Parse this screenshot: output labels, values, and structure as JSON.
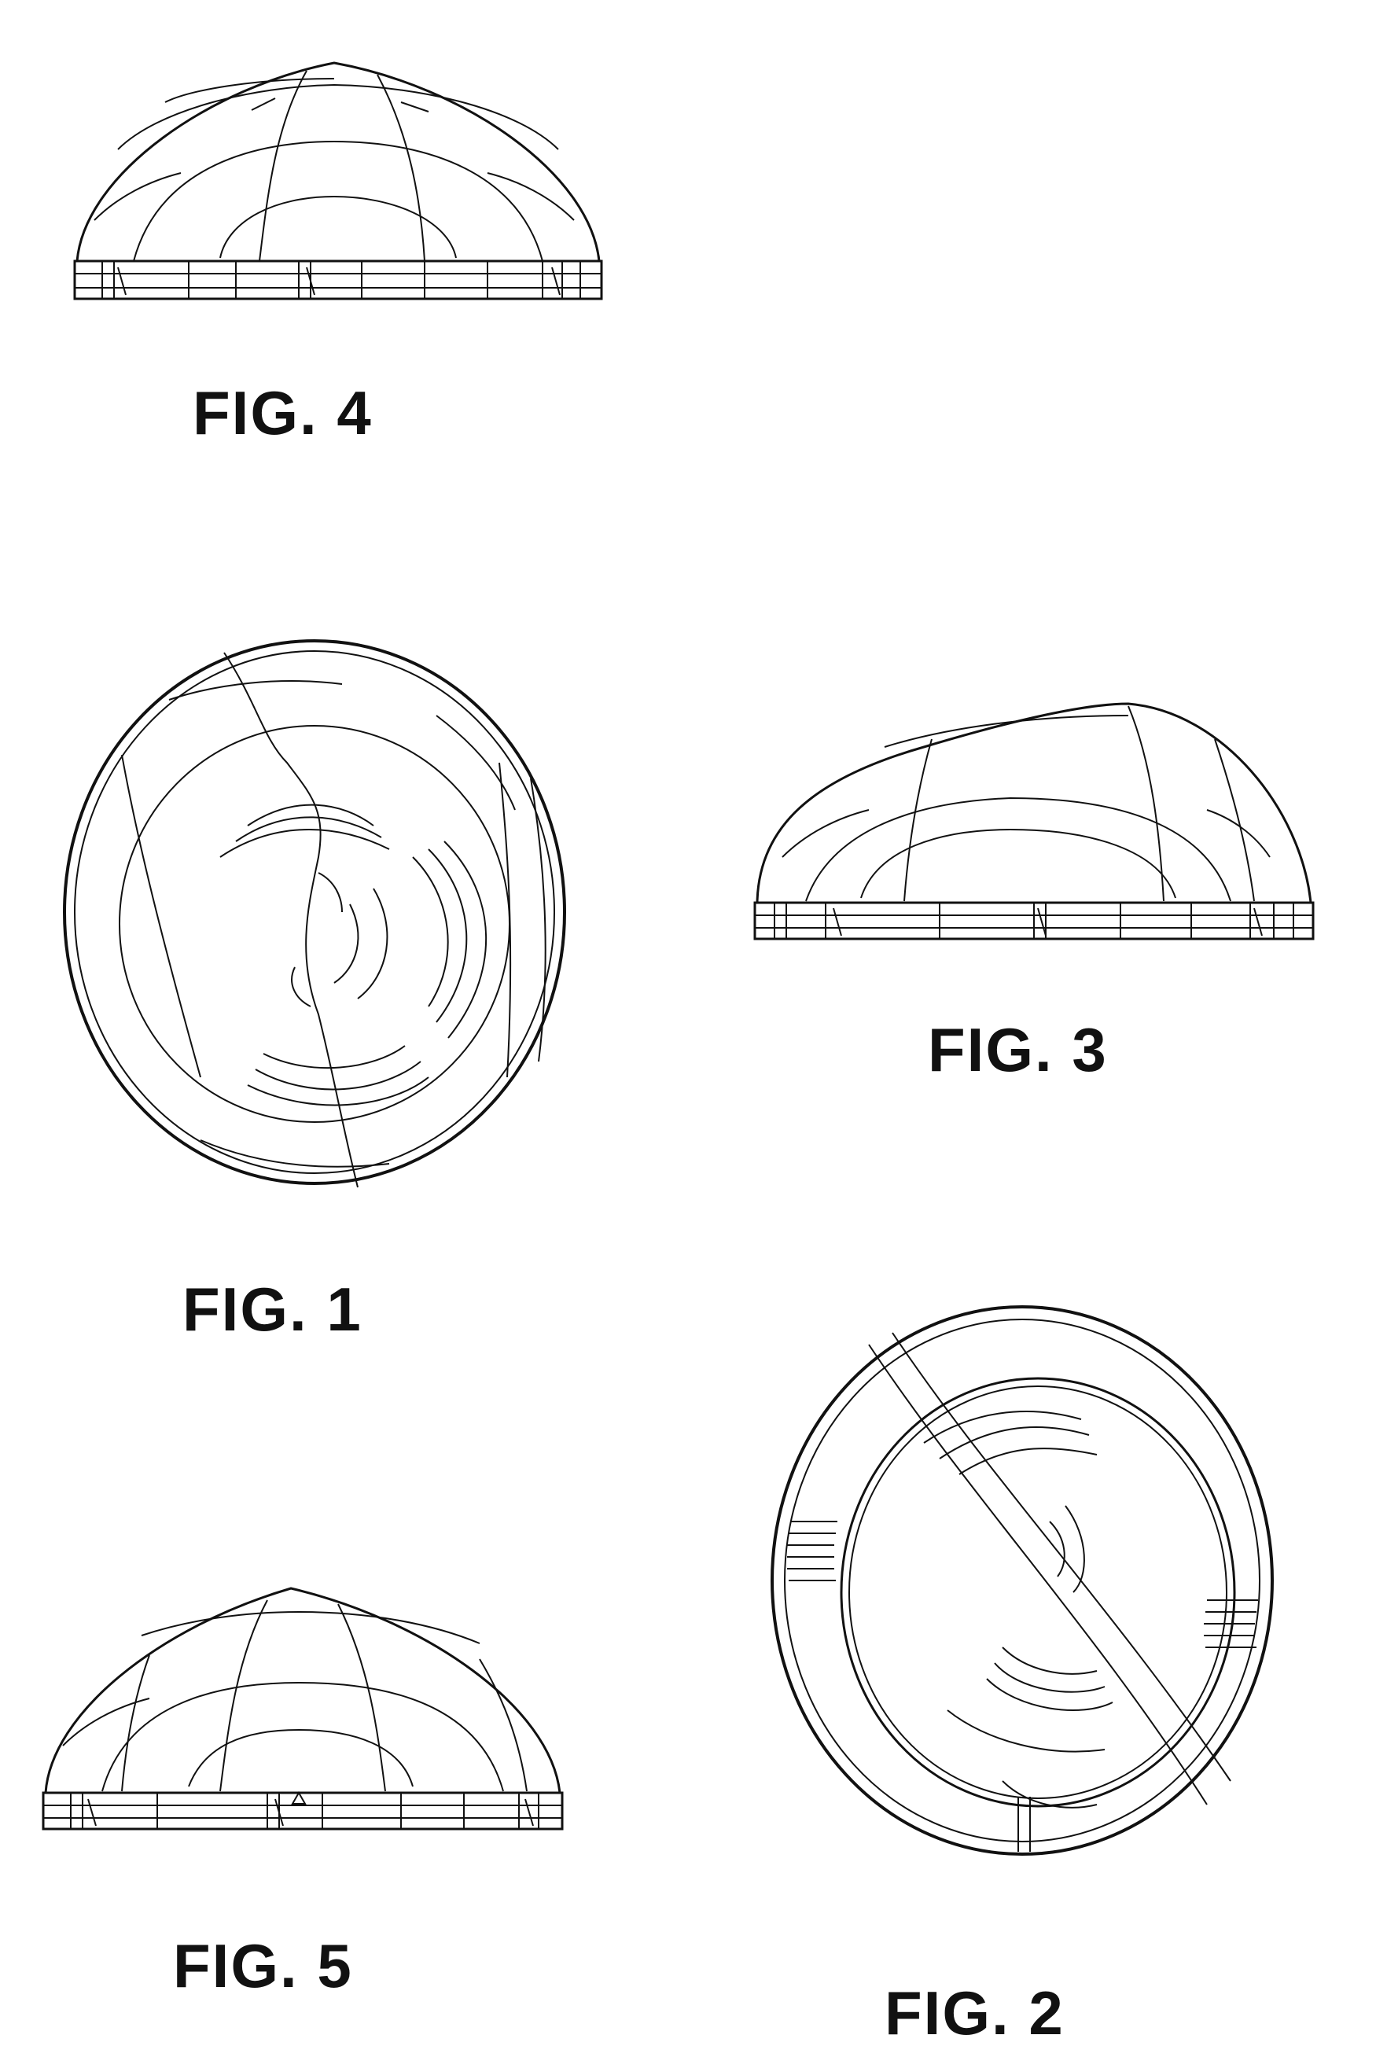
{
  "sheet": {
    "figures": [
      {
        "id": "fig4",
        "label": "FIG. 4",
        "view": "side"
      },
      {
        "id": "fig1",
        "label": "FIG. 1",
        "view": "top"
      },
      {
        "id": "fig3",
        "label": "FIG. 3",
        "view": "side"
      },
      {
        "id": "fig2",
        "label": "FIG. 2",
        "view": "bottom"
      },
      {
        "id": "fig5",
        "label": "FIG. 5",
        "view": "side"
      }
    ]
  },
  "colors": {
    "ink": "#111111",
    "paper": "#ffffff"
  }
}
